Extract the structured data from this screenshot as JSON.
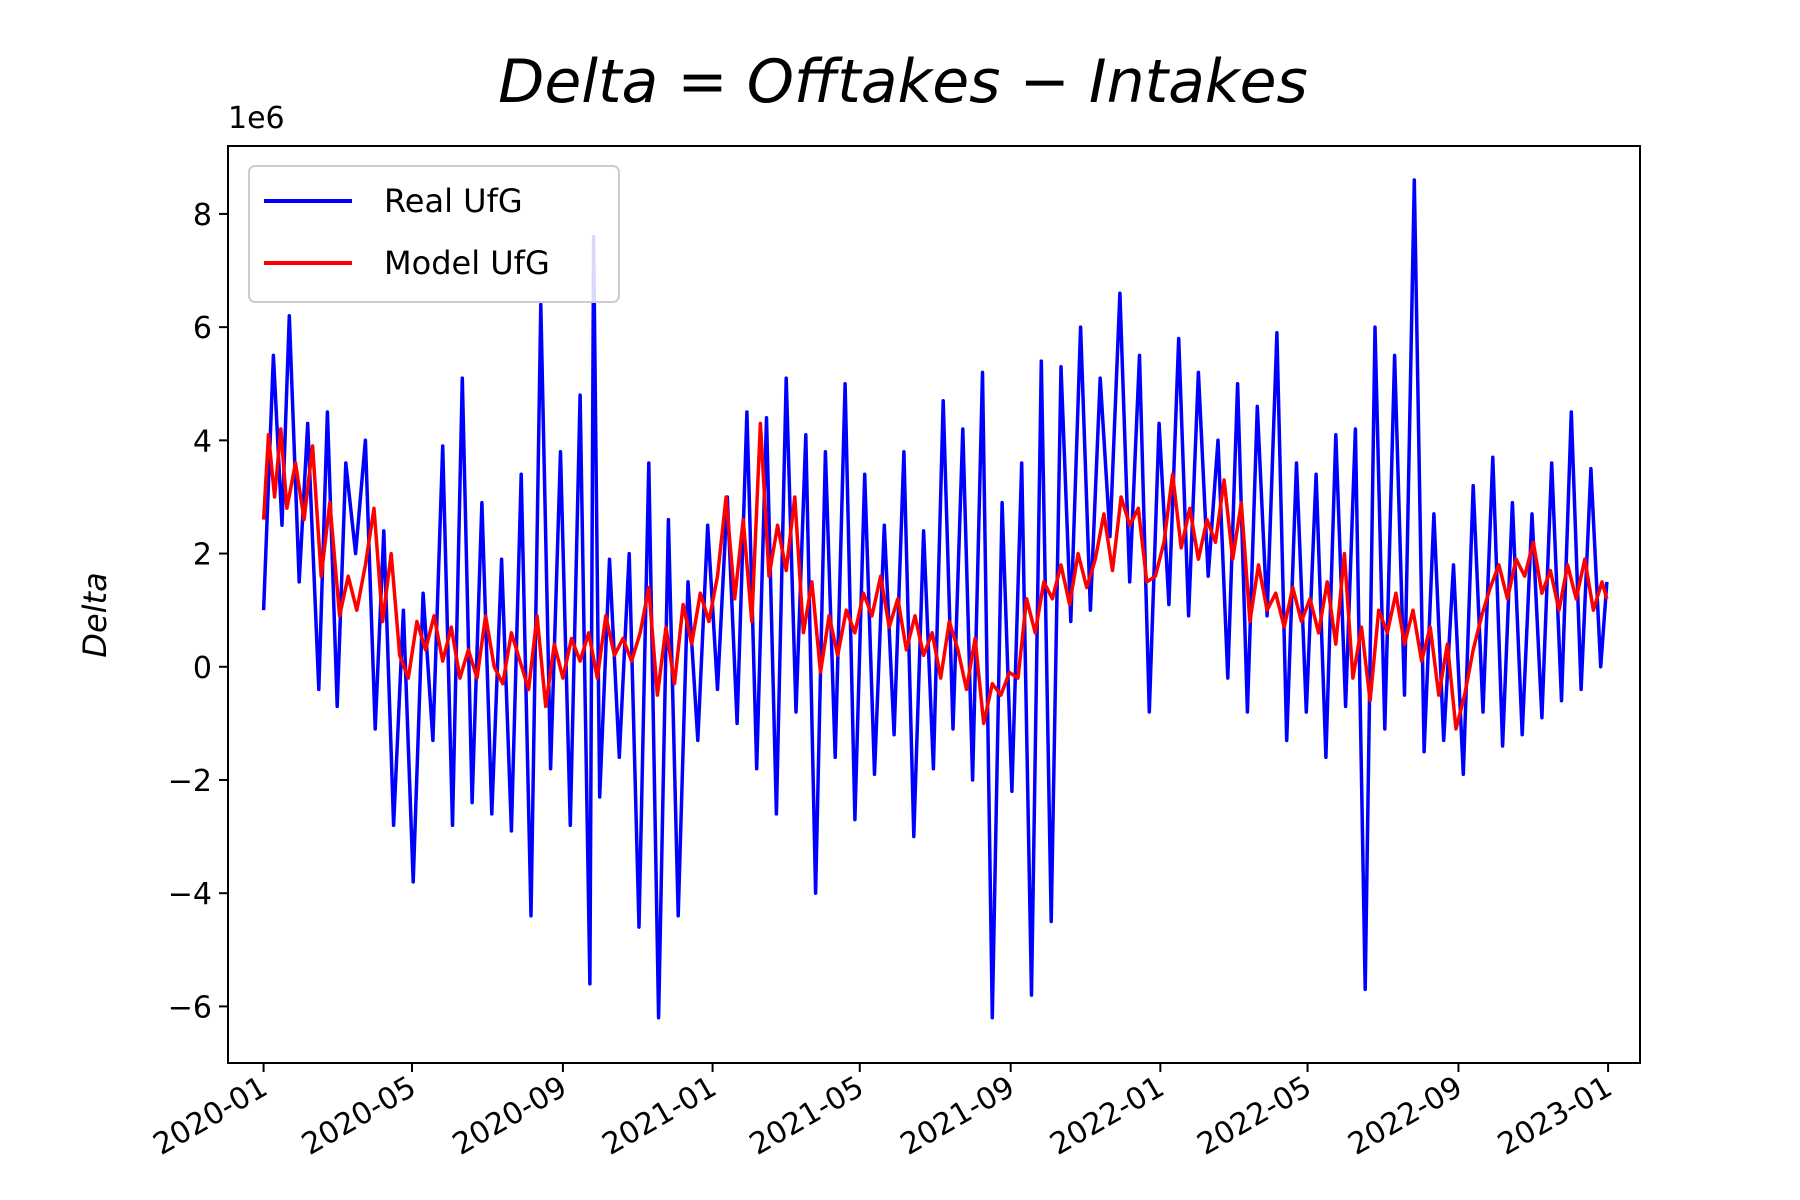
{
  "chart_data": {
    "type": "line",
    "title": "Delta = Offtakes − Intakes",
    "title_parts": [
      "Delta",
      "=",
      "Offtakes",
      "−",
      "Intakes"
    ],
    "ylabel": "Delta",
    "xlabel": "",
    "y_offset_label": "1e6",
    "ylim": [
      -7.0,
      9.2
    ],
    "xlim": [
      "2019-12-03",
      "2023-01-27"
    ],
    "yticks": [
      -6,
      -4,
      -2,
      0,
      2,
      4,
      6,
      8
    ],
    "ytick_labels": [
      "−6",
      "−4",
      "−2",
      "0",
      "2",
      "4",
      "6",
      "8"
    ],
    "xticks": [
      "2020-01-01",
      "2020-05-01",
      "2020-09-01",
      "2021-01-01",
      "2021-05-01",
      "2021-09-01",
      "2022-01-01",
      "2022-05-01",
      "2022-09-01",
      "2023-01-01"
    ],
    "xtick_labels": [
      "2020-01",
      "2020-05",
      "2020-09",
      "2021-01",
      "2021-05",
      "2021-09",
      "2022-01",
      "2022-05",
      "2022-09",
      "2023-01"
    ],
    "legend_position": "top-left",
    "grid": false,
    "series": [
      {
        "name": "Real UfG",
        "color": "#0000ff",
        "x": [
          "2020-01-01",
          "2020-01-09",
          "2020-01-16",
          "2020-01-22",
          "2020-01-30",
          "2020-02-06",
          "2020-02-15",
          "2020-02-22",
          "2020-03-01",
          "2020-03-08",
          "2020-03-16",
          "2020-03-24",
          "2020-04-01",
          "2020-04-08",
          "2020-04-16",
          "2020-04-24",
          "2020-05-02",
          "2020-05-10",
          "2020-05-18",
          "2020-05-26",
          "2020-06-03",
          "2020-06-11",
          "2020-06-19",
          "2020-06-27",
          "2020-07-05",
          "2020-07-13",
          "2020-07-21",
          "2020-07-29",
          "2020-08-06",
          "2020-08-14",
          "2020-08-22",
          "2020-08-30",
          "2020-09-07",
          "2020-09-15",
          "2020-09-23",
          "2020-09-26",
          "2020-10-01",
          "2020-10-09",
          "2020-10-17",
          "2020-10-25",
          "2020-11-02",
          "2020-11-10",
          "2020-11-18",
          "2020-11-26",
          "2020-12-04",
          "2020-12-12",
          "2020-12-20",
          "2020-12-28",
          "2021-01-05",
          "2021-01-13",
          "2021-01-21",
          "2021-01-29",
          "2021-02-06",
          "2021-02-14",
          "2021-02-22",
          "2021-03-02",
          "2021-03-10",
          "2021-03-18",
          "2021-03-26",
          "2021-04-03",
          "2021-04-11",
          "2021-04-19",
          "2021-04-27",
          "2021-05-05",
          "2021-05-13",
          "2021-05-21",
          "2021-05-29",
          "2021-06-06",
          "2021-06-14",
          "2021-06-22",
          "2021-06-30",
          "2021-07-08",
          "2021-07-16",
          "2021-07-24",
          "2021-08-01",
          "2021-08-09",
          "2021-08-17",
          "2021-08-25",
          "2021-09-02",
          "2021-09-10",
          "2021-09-18",
          "2021-09-26",
          "2021-10-04",
          "2021-10-12",
          "2021-10-20",
          "2021-10-28",
          "2021-11-05",
          "2021-11-13",
          "2021-11-21",
          "2021-11-29",
          "2021-12-07",
          "2021-12-15",
          "2021-12-23",
          "2021-12-31",
          "2022-01-08",
          "2022-01-16",
          "2022-01-24",
          "2022-02-01",
          "2022-02-09",
          "2022-02-17",
          "2022-02-25",
          "2022-03-05",
          "2022-03-13",
          "2022-03-21",
          "2022-03-29",
          "2022-04-06",
          "2022-04-14",
          "2022-04-22",
          "2022-04-30",
          "2022-05-08",
          "2022-05-16",
          "2022-05-24",
          "2022-06-01",
          "2022-06-09",
          "2022-06-17",
          "2022-06-25",
          "2022-07-03",
          "2022-07-11",
          "2022-07-19",
          "2022-07-27",
          "2022-08-04",
          "2022-08-12",
          "2022-08-20",
          "2022-08-28",
          "2022-09-05",
          "2022-09-13",
          "2022-09-21",
          "2022-09-29",
          "2022-10-07",
          "2022-10-15",
          "2022-10-23",
          "2022-10-31",
          "2022-11-08",
          "2022-11-16",
          "2022-11-24",
          "2022-12-02",
          "2022-12-10",
          "2022-12-18",
          "2022-12-26",
          "2022-12-31"
        ],
        "y": [
          1.0,
          5.5,
          2.5,
          6.2,
          1.5,
          4.3,
          -0.4,
          4.5,
          -0.7,
          3.6,
          2.0,
          4.0,
          -1.1,
          2.4,
          -2.8,
          1.0,
          -3.8,
          1.3,
          -1.3,
          3.9,
          -2.8,
          5.1,
          -2.4,
          2.9,
          -2.6,
          1.9,
          -2.9,
          3.4,
          -4.4,
          6.4,
          -1.8,
          3.8,
          -2.8,
          4.8,
          -5.6,
          7.6,
          -2.3,
          1.9,
          -1.6,
          2.0,
          -4.6,
          3.6,
          -6.2,
          2.6,
          -4.4,
          1.5,
          -1.3,
          2.5,
          -0.4,
          3.0,
          -1.0,
          4.5,
          -1.8,
          4.4,
          -2.6,
          5.1,
          -0.8,
          4.1,
          -4.0,
          3.8,
          -1.6,
          5.0,
          -2.7,
          3.4,
          -1.9,
          2.5,
          -1.2,
          3.8,
          -3.0,
          2.4,
          -1.8,
          4.7,
          -1.1,
          4.2,
          -2.0,
          5.2,
          -6.2,
          2.9,
          -2.2,
          3.6,
          -5.8,
          5.4,
          -4.5,
          5.3,
          0.8,
          6.0,
          1.0,
          5.1,
          2.3,
          6.6,
          1.5,
          5.5,
          -0.8,
          4.3,
          1.1,
          5.8,
          0.9,
          5.2,
          1.6,
          4.0,
          -0.2,
          5.0,
          -0.8,
          4.6,
          0.9,
          5.9,
          -1.3,
          3.6,
          -0.8,
          3.4,
          -1.6,
          4.1,
          -0.7,
          4.2,
          -5.7,
          6.0,
          -1.1,
          5.5,
          -0.5,
          8.6,
          -1.5,
          2.7,
          -1.3,
          1.8,
          -1.9,
          3.2,
          -0.8,
          3.7,
          -1.4,
          2.9,
          -1.2,
          2.7,
          -0.9,
          3.6,
          -0.6,
          4.5,
          -0.4,
          3.5,
          0.0,
          1.5
        ]
      },
      {
        "name": "Model UfG",
        "color": "#ff0000",
        "x": [
          "2020-01-01",
          "2020-01-05",
          "2020-01-10",
          "2020-01-15",
          "2020-01-20",
          "2020-01-27",
          "2020-02-03",
          "2020-02-10",
          "2020-02-17",
          "2020-02-24",
          "2020-03-03",
          "2020-03-10",
          "2020-03-17",
          "2020-03-24",
          "2020-03-31",
          "2020-04-07",
          "2020-04-14",
          "2020-04-21",
          "2020-04-28",
          "2020-05-05",
          "2020-05-12",
          "2020-05-19",
          "2020-05-26",
          "2020-06-02",
          "2020-06-09",
          "2020-06-16",
          "2020-06-23",
          "2020-06-30",
          "2020-07-07",
          "2020-07-14",
          "2020-07-21",
          "2020-07-28",
          "2020-08-04",
          "2020-08-11",
          "2020-08-18",
          "2020-08-25",
          "2020-09-01",
          "2020-09-08",
          "2020-09-15",
          "2020-09-22",
          "2020-09-29",
          "2020-10-06",
          "2020-10-13",
          "2020-10-20",
          "2020-10-27",
          "2020-11-03",
          "2020-11-10",
          "2020-11-17",
          "2020-11-24",
          "2020-12-01",
          "2020-12-08",
          "2020-12-15",
          "2020-12-22",
          "2020-12-29",
          "2021-01-05",
          "2021-01-12",
          "2021-01-19",
          "2021-01-26",
          "2021-02-02",
          "2021-02-09",
          "2021-02-16",
          "2021-02-23",
          "2021-03-02",
          "2021-03-09",
          "2021-03-16",
          "2021-03-23",
          "2021-03-30",
          "2021-04-06",
          "2021-04-13",
          "2021-04-20",
          "2021-04-27",
          "2021-05-04",
          "2021-05-11",
          "2021-05-18",
          "2021-05-25",
          "2021-06-01",
          "2021-06-08",
          "2021-06-15",
          "2021-06-22",
          "2021-06-29",
          "2021-07-06",
          "2021-07-13",
          "2021-07-20",
          "2021-07-27",
          "2021-08-03",
          "2021-08-10",
          "2021-08-17",
          "2021-08-24",
          "2021-08-31",
          "2021-09-07",
          "2021-09-14",
          "2021-09-21",
          "2021-09-28",
          "2021-10-05",
          "2021-10-12",
          "2021-10-19",
          "2021-10-26",
          "2021-11-02",
          "2021-11-09",
          "2021-11-16",
          "2021-11-23",
          "2021-11-30",
          "2021-12-07",
          "2021-12-14",
          "2021-12-21",
          "2021-12-28",
          "2022-01-04",
          "2022-01-11",
          "2022-01-18",
          "2022-01-25",
          "2022-02-01",
          "2022-02-08",
          "2022-02-15",
          "2022-02-22",
          "2022-03-01",
          "2022-03-08",
          "2022-03-15",
          "2022-03-22",
          "2022-03-29",
          "2022-04-05",
          "2022-04-12",
          "2022-04-19",
          "2022-04-26",
          "2022-05-03",
          "2022-05-10",
          "2022-05-17",
          "2022-05-24",
          "2022-05-31",
          "2022-06-07",
          "2022-06-14",
          "2022-06-21",
          "2022-06-28",
          "2022-07-05",
          "2022-07-12",
          "2022-07-19",
          "2022-07-26",
          "2022-08-02",
          "2022-08-09",
          "2022-08-16",
          "2022-08-23",
          "2022-08-30",
          "2022-09-06",
          "2022-09-13",
          "2022-09-20",
          "2022-09-27",
          "2022-10-04",
          "2022-10-11",
          "2022-10-18",
          "2022-10-25",
          "2022-11-01",
          "2022-11-08",
          "2022-11-15",
          "2022-11-22",
          "2022-11-29",
          "2022-12-06",
          "2022-12-13",
          "2022-12-20",
          "2022-12-27",
          "2022-12-31"
        ],
        "y": [
          2.6,
          4.1,
          3.0,
          4.2,
          2.8,
          3.6,
          2.6,
          3.9,
          1.6,
          2.9,
          0.9,
          1.6,
          1.0,
          1.8,
          2.8,
          0.8,
          2.0,
          0.2,
          -0.2,
          0.8,
          0.3,
          0.9,
          0.1,
          0.7,
          -0.2,
          0.3,
          -0.2,
          0.9,
          0.0,
          -0.3,
          0.6,
          0.1,
          -0.4,
          0.9,
          -0.7,
          0.4,
          -0.2,
          0.5,
          0.1,
          0.6,
          -0.2,
          0.9,
          0.2,
          0.5,
          0.1,
          0.6,
          1.4,
          -0.5,
          0.7,
          -0.3,
          1.1,
          0.4,
          1.3,
          0.8,
          1.6,
          3.0,
          1.2,
          2.6,
          0.8,
          4.3,
          1.6,
          2.5,
          1.7,
          3.0,
          0.6,
          1.5,
          -0.1,
          0.9,
          0.2,
          1.0,
          0.6,
          1.3,
          0.9,
          1.6,
          0.7,
          1.2,
          0.3,
          0.9,
          0.2,
          0.6,
          -0.2,
          0.8,
          0.3,
          -0.4,
          0.5,
          -1.0,
          -0.3,
          -0.5,
          -0.1,
          -0.2,
          1.2,
          0.6,
          1.5,
          1.2,
          1.8,
          1.1,
          2.0,
          1.4,
          1.9,
          2.7,
          1.7,
          3.0,
          2.5,
          2.8,
          1.5,
          1.6,
          2.2,
          3.4,
          2.1,
          2.8,
          1.9,
          2.6,
          2.2,
          3.3,
          1.9,
          2.9,
          0.8,
          1.8,
          1.0,
          1.3,
          0.7,
          1.4,
          0.8,
          1.2,
          0.6,
          1.5,
          0.4,
          2.0,
          -0.2,
          0.7,
          -0.6,
          1.0,
          0.6,
          1.3,
          0.4,
          1.0,
          0.1,
          0.7,
          -0.5,
          0.4,
          -1.1,
          -0.5,
          0.3,
          0.9,
          1.4,
          1.8,
          1.2,
          1.9,
          1.6,
          2.2,
          1.3,
          1.7,
          1.0,
          1.8,
          1.2,
          1.9,
          1.0,
          1.5,
          1.2
        ]
      }
    ]
  }
}
